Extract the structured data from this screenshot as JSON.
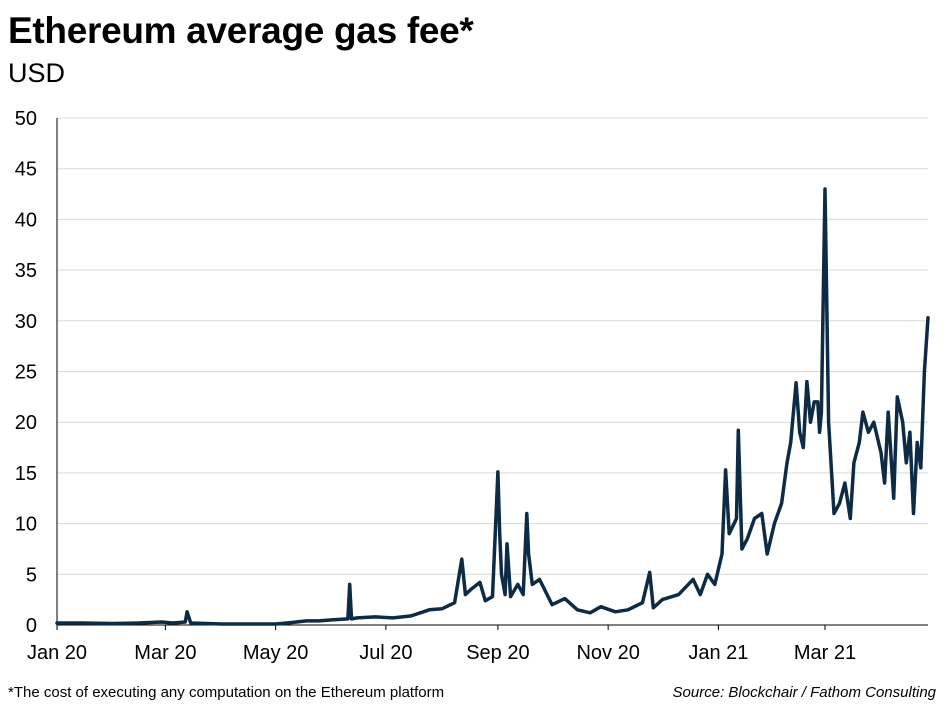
{
  "chart_data": {
    "type": "line",
    "title": "Ethereum average gas fee*",
    "subtitle": "USD",
    "xlabel": "",
    "ylabel": "",
    "ylim": [
      0,
      50
    ],
    "yticks": [
      0,
      5,
      10,
      15,
      20,
      25,
      30,
      35,
      40,
      45,
      50
    ],
    "xlim": [
      "2020-01-01",
      "2021-04-27"
    ],
    "xticks": [
      {
        "date": "2020-01-01",
        "label": "Jan 20"
      },
      {
        "date": "2020-03-01",
        "label": "Mar 20"
      },
      {
        "date": "2020-05-01",
        "label": "May 20"
      },
      {
        "date": "2020-07-01",
        "label": "Jul 20"
      },
      {
        "date": "2020-09-01",
        "label": "Sep 20"
      },
      {
        "date": "2020-11-01",
        "label": "Nov 20"
      },
      {
        "date": "2021-01-01",
        "label": "Jan 21"
      },
      {
        "date": "2021-03-01",
        "label": "Mar 21"
      }
    ],
    "grid": "horizontal",
    "line_color": "#0d2b45",
    "series": [
      {
        "x": [
          "2020-01-01",
          "2020-01-15",
          "2020-02-01",
          "2020-02-15",
          "2020-02-28",
          "2020-03-05",
          "2020-03-12",
          "2020-03-13",
          "2020-03-15",
          "2020-04-01",
          "2020-04-20",
          "2020-05-01",
          "2020-05-10",
          "2020-05-18",
          "2020-05-25",
          "2020-06-01",
          "2020-06-10",
          "2020-06-11",
          "2020-06-12",
          "2020-06-15",
          "2020-06-25",
          "2020-07-05",
          "2020-07-15",
          "2020-07-25",
          "2020-08-01",
          "2020-08-08",
          "2020-08-12",
          "2020-08-14",
          "2020-08-17",
          "2020-08-22",
          "2020-08-25",
          "2020-08-29",
          "2020-09-01",
          "2020-09-02",
          "2020-09-03",
          "2020-09-05",
          "2020-09-06",
          "2020-09-08",
          "2020-09-12",
          "2020-09-15",
          "2020-09-17",
          "2020-09-18",
          "2020-09-20",
          "2020-09-24",
          "2020-10-01",
          "2020-10-08",
          "2020-10-15",
          "2020-10-22",
          "2020-10-28",
          "2020-11-05",
          "2020-11-12",
          "2020-11-20",
          "2020-11-24",
          "2020-11-26",
          "2020-12-01",
          "2020-12-10",
          "2020-12-18",
          "2020-12-22",
          "2020-12-26",
          "2020-12-30",
          "2021-01-03",
          "2021-01-05",
          "2021-01-07",
          "2021-01-11",
          "2021-01-12",
          "2021-01-14",
          "2021-01-17",
          "2021-01-21",
          "2021-01-25",
          "2021-01-28",
          "2021-02-01",
          "2021-02-05",
          "2021-02-08",
          "2021-02-10",
          "2021-02-13",
          "2021-02-15",
          "2021-02-17",
          "2021-02-19",
          "2021-02-21",
          "2021-02-23",
          "2021-02-25",
          "2021-02-26",
          "2021-02-27",
          "2021-03-01",
          "2021-03-03",
          "2021-03-06",
          "2021-03-09",
          "2021-03-12",
          "2021-03-15",
          "2021-03-17",
          "2021-03-20",
          "2021-03-22",
          "2021-03-25",
          "2021-03-28",
          "2021-04-01",
          "2021-04-03",
          "2021-04-05",
          "2021-04-08",
          "2021-04-10",
          "2021-04-13",
          "2021-04-15",
          "2021-04-17",
          "2021-04-19",
          "2021-04-21",
          "2021-04-23",
          "2021-04-25",
          "2021-04-27"
        ],
        "y": [
          0.2,
          0.2,
          0.15,
          0.2,
          0.3,
          0.2,
          0.3,
          1.3,
          0.2,
          0.1,
          0.1,
          0.1,
          0.25,
          0.4,
          0.4,
          0.5,
          0.6,
          4.0,
          0.6,
          0.7,
          0.8,
          0.7,
          0.9,
          1.5,
          1.6,
          2.2,
          6.5,
          3.0,
          3.5,
          4.2,
          2.4,
          2.8,
          15.1,
          9.0,
          5.0,
          3.0,
          8.0,
          2.8,
          4.0,
          3.0,
          11.0,
          7.0,
          4.0,
          4.5,
          2.0,
          2.6,
          1.5,
          1.2,
          1.8,
          1.3,
          1.5,
          2.2,
          5.2,
          1.7,
          2.5,
          3.0,
          4.5,
          3.0,
          5.0,
          4.0,
          7.0,
          15.3,
          9.0,
          10.5,
          19.2,
          7.5,
          8.5,
          10.5,
          11.0,
          7.0,
          10.0,
          12.0,
          16.0,
          18.0,
          23.9,
          19.0,
          17.5,
          24.0,
          20.0,
          22.0,
          22.0,
          19.0,
          21.0,
          43.0,
          20.0,
          11.0,
          12.0,
          14.0,
          10.5,
          16.0,
          18.0,
          21.0,
          19.0,
          20.0,
          17.0,
          14.0,
          21.0,
          12.5,
          22.5,
          20.0,
          16.0,
          19.0,
          11.0,
          18.0,
          15.5,
          25.0,
          30.3
        ]
      }
    ],
    "footnote": "*The cost of executing  any computation  on the Ethereum  platform",
    "source": "Source: Blockchair / Fathom Consulting"
  }
}
